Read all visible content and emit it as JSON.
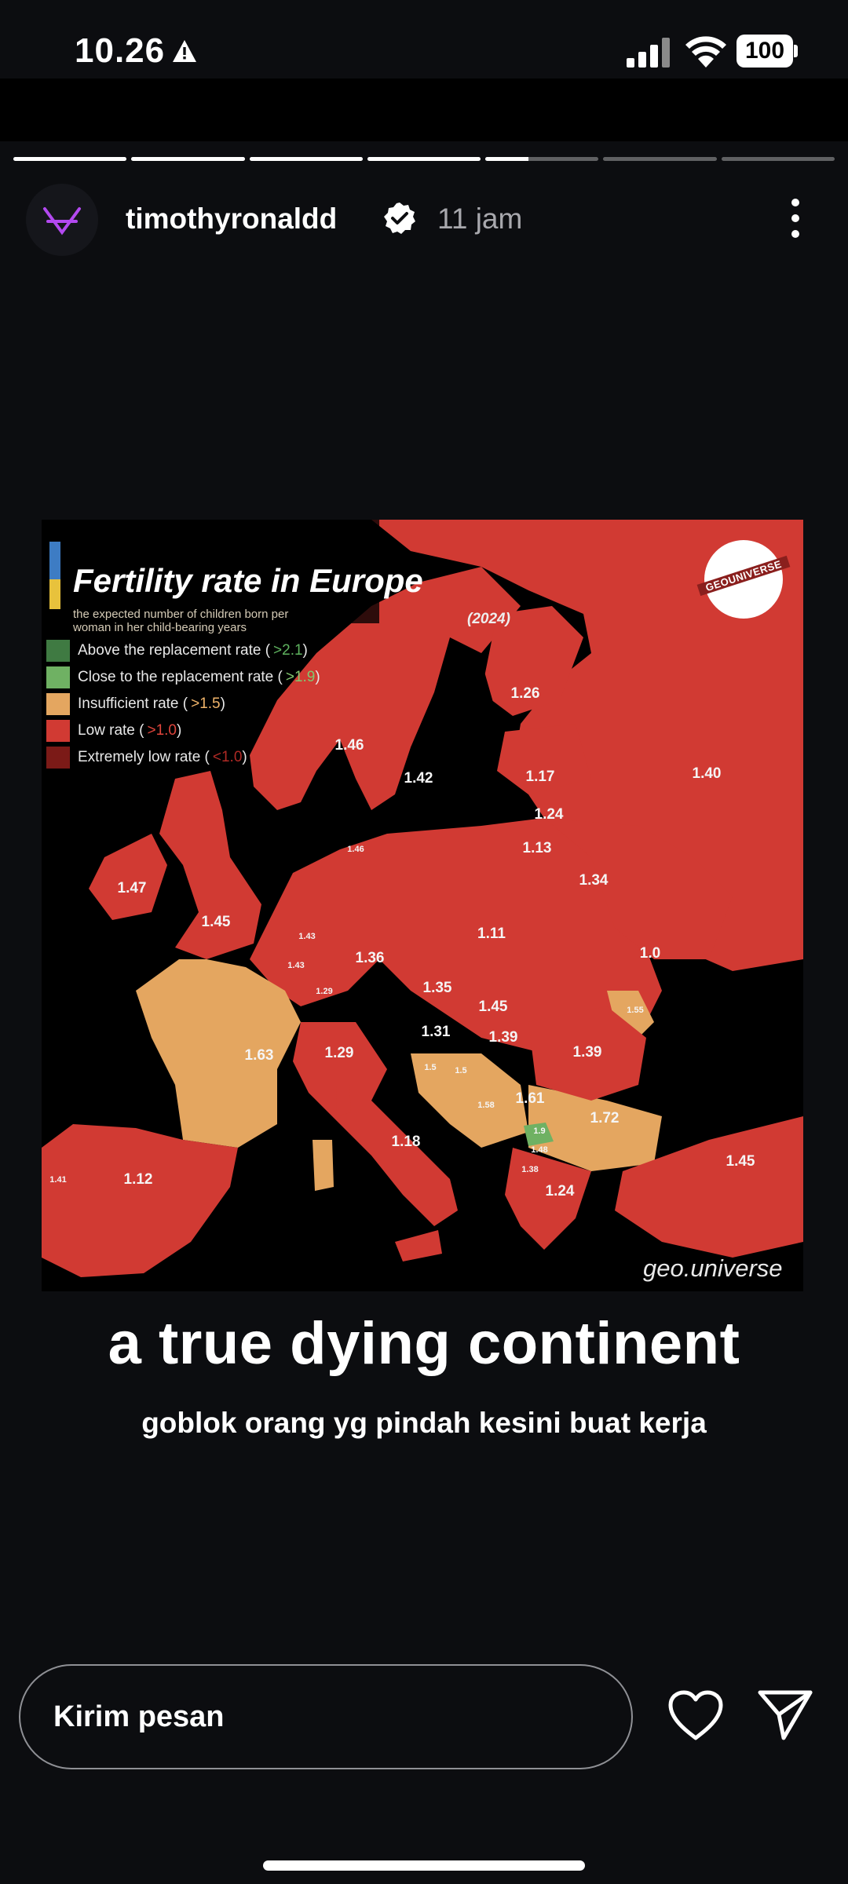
{
  "status_bar": {
    "time": "10.26",
    "battery": "100",
    "icons": [
      "alert-triangle-icon",
      "cellular-signal-icon",
      "wifi-icon",
      "battery-icon"
    ]
  },
  "story": {
    "progress": [
      {
        "fill": 1.0
      },
      {
        "fill": 1.0
      },
      {
        "fill": 1.0
      },
      {
        "fill": 1.0
      },
      {
        "fill": 0.38
      },
      {
        "fill": 0.0
      },
      {
        "fill": 0.0
      }
    ],
    "username": "timothyronaldd",
    "time_ago": "11 jam",
    "image": {
      "title": "Fertility rate in Europe",
      "subtitle": "the expected number of children born per woman in her child-bearing years",
      "year": "(2024)",
      "logo_text": "GEOUNIVERSE",
      "watermark": "geo.universe",
      "legend": [
        {
          "label": "Above the replacement rate (",
          "threshold": ">2.1",
          "close": ")",
          "color": "#3f7a42",
          "thr_color": "#5fb35f"
        },
        {
          "label": "Close to the replacement rate (",
          "threshold": ">1.9",
          "close": ")",
          "color": "#6fb163",
          "thr_color": "#82c76f"
        },
        {
          "label": "Insufficient rate (",
          "threshold": ">1.5",
          "close": ")",
          "color": "#e4a660",
          "thr_color": "#f0b46a"
        },
        {
          "label": "Low rate (",
          "threshold": ">1.0",
          "close": ")",
          "color": "#d13a33",
          "thr_color": "#e0453c"
        },
        {
          "label": "Extremely low rate (",
          "threshold": "<1.0",
          "close": ")",
          "color": "#7b1a17",
          "thr_color": "#b02a25"
        }
      ],
      "values": [
        "1.26",
        "1.46",
        "1.42",
        "1.17",
        "1.40",
        "1.24",
        "1.13",
        "1.46",
        "1.34",
        "1.47",
        "1.45",
        "1.11",
        "1.43",
        "1.36",
        "1.0",
        "1.43",
        "1.35",
        "1.45",
        "1.31",
        "1.39",
        "1.39",
        "1.63",
        "1.29",
        "1.5",
        "1.5",
        "1.58",
        "1.61",
        "1.72",
        "1.9",
        "1.18",
        "1.48",
        "1.45",
        "1.38",
        "1.41",
        "1.12",
        "1.24",
        "1.29",
        "1.55"
      ],
      "colors": {
        "red": "#d13a33",
        "orange": "#e4a660",
        "green": "#6fb163",
        "dark": "#000000"
      }
    },
    "caption_main": "a true dying continent",
    "caption_sub": "goblok orang yg pindah kesini buat kerja"
  },
  "reply": {
    "placeholder": "Kirim pesan",
    "icons": [
      "heart-icon",
      "send-icon"
    ]
  }
}
